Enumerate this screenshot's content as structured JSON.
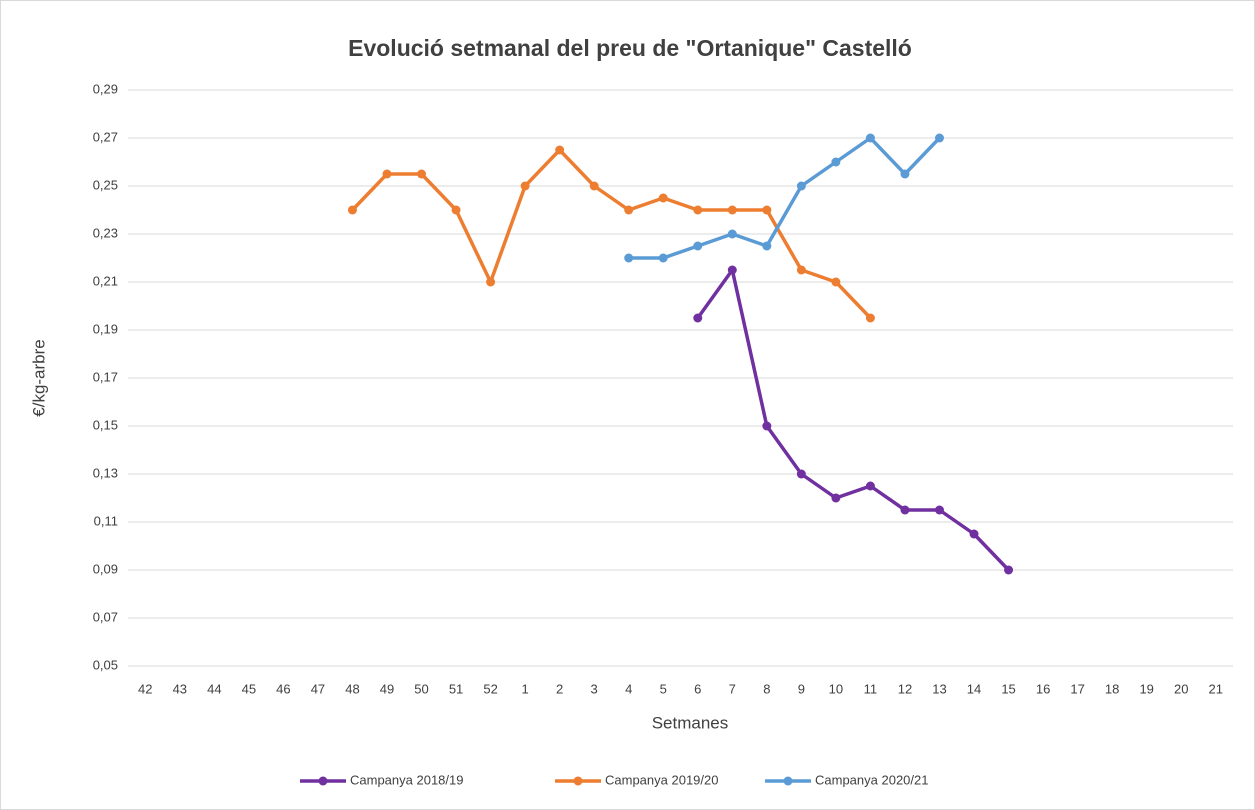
{
  "chart_data": {
    "type": "line",
    "title": "Evolució setmanal del preu de \"Ortanique\"  Castelló",
    "x_label": "Setmanes",
    "y_label": "€/kg-arbre",
    "categories": [
      "42",
      "43",
      "44",
      "45",
      "46",
      "47",
      "48",
      "49",
      "50",
      "51",
      "52",
      "1",
      "2",
      "3",
      "4",
      "5",
      "6",
      "7",
      "8",
      "9",
      "10",
      "11",
      "12",
      "13",
      "14",
      "15",
      "16",
      "17",
      "18",
      "19",
      "20",
      "21"
    ],
    "series": [
      {
        "name": "Campanya 2018/19",
        "color": "#7030a0",
        "values": [
          null,
          null,
          null,
          null,
          null,
          null,
          null,
          null,
          null,
          null,
          null,
          null,
          null,
          null,
          null,
          null,
          0.195,
          0.215,
          0.15,
          0.13,
          0.12,
          0.125,
          0.115,
          0.115,
          0.105,
          0.09,
          null,
          null,
          null,
          null,
          null,
          null
        ]
      },
      {
        "name": "Campanya 2019/20",
        "color": "#ed7d31",
        "values": [
          null,
          null,
          null,
          null,
          null,
          null,
          0.24,
          0.255,
          0.255,
          0.24,
          0.21,
          0.25,
          0.265,
          0.25,
          0.24,
          0.245,
          0.24,
          0.24,
          0.24,
          0.215,
          0.21,
          0.195,
          null,
          null,
          null,
          null,
          null,
          null,
          null,
          null,
          null,
          null
        ]
      },
      {
        "name": "Campanya 2020/21",
        "color": "#5b9bd5",
        "values": [
          null,
          null,
          null,
          null,
          null,
          null,
          null,
          null,
          null,
          null,
          null,
          null,
          null,
          null,
          0.22,
          0.22,
          0.225,
          0.23,
          0.225,
          0.25,
          0.26,
          0.27,
          0.255,
          0.27,
          null,
          null,
          null,
          null,
          null,
          null,
          null,
          null
        ]
      }
    ],
    "ylim": [
      0.05,
      0.29
    ],
    "yticks": [
      {
        "value": 0.05,
        "label": "0,05"
      },
      {
        "value": 0.07,
        "label": "0,07"
      },
      {
        "value": 0.09,
        "label": "0,09"
      },
      {
        "value": 0.11,
        "label": "0,11"
      },
      {
        "value": 0.13,
        "label": "0,13"
      },
      {
        "value": 0.15,
        "label": "0,15"
      },
      {
        "value": 0.17,
        "label": "0,17"
      },
      {
        "value": 0.19,
        "label": "0,19"
      },
      {
        "value": 0.21,
        "label": "0,21"
      },
      {
        "value": 0.23,
        "label": "0,23"
      },
      {
        "value": 0.25,
        "label": "0,25"
      },
      {
        "value": 0.27,
        "label": "0,27"
      },
      {
        "value": 0.29,
        "label": "0,29"
      }
    ],
    "grid": true,
    "legend": "bottom"
  }
}
